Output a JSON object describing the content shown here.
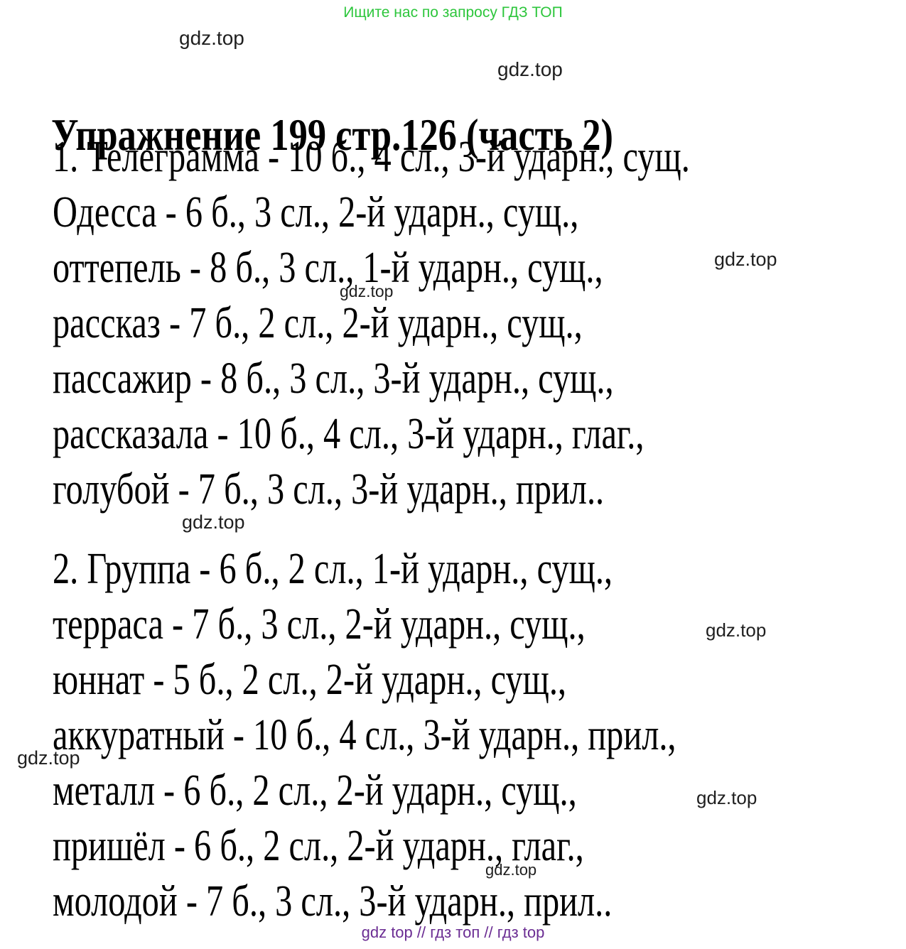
{
  "page": {
    "header_notice": "Ищите нас по запросу ГДЗ ТОП",
    "title": "Упражнение 199 стр.126 (часть 2)",
    "watermark": "gdz.top",
    "footer": "gdz top  //  гдз топ  //  гдз top",
    "colors": {
      "header_green": "#2dc63c",
      "footer_purple": "#6b2d93",
      "body_text": "#000000",
      "watermark_gray": "#1f1f1f",
      "background": "#ffffff"
    }
  },
  "answer": {
    "item1": {
      "lines": [
        "1. Телеграмма - 10 б., 4 сл., 3-й ударн., сущ.",
        "Одесса - 6 б., 3 сл., 2-й ударн., сущ.,",
        "оттепель - 8 б., 3 сл., 1-й ударн., сущ.,",
        "рассказ - 7 б., 2 сл., 2-й ударн., сущ.,",
        "пассажир - 8 б., 3 сл., 3-й ударн., сущ.,",
        "рассказала - 10 б., 4 сл., 3-й ударн., глаг.,",
        "голубой - 7 б., 3 сл., 3-й ударн., прил.."
      ]
    },
    "item2": {
      "lines": [
        "2. Группа - 6 б., 2 сл., 1-й ударн., сущ.,",
        "терраса - 7 б., 3 сл., 2-й ударн., сущ.,",
        "юннат - 5 б., 2 сл., 2-й ударн., сущ.,",
        "аккуратный - 10 б., 4 сл., 3-й ударн., прил.,",
        "металл - 6 б., 2 сл., 2-й ударн., сущ.,",
        "пришёл - 6 б., 2 сл., 2-й ударн., глаг.,",
        "молодой - 7 б., 3 сл., 3-й ударн., прил.."
      ]
    }
  }
}
